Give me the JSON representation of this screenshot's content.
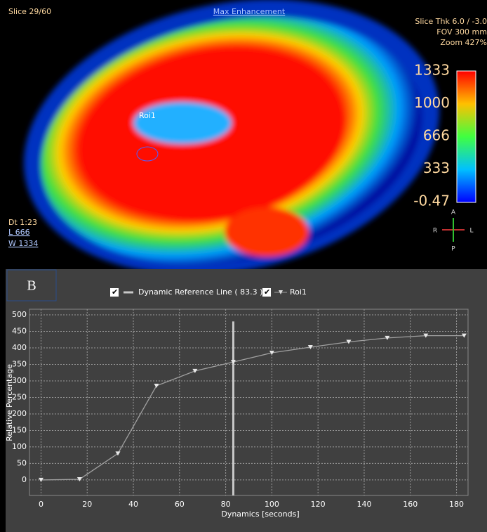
{
  "overlay": {
    "slice": "Slice 29/60",
    "mode": "Max Enhancement",
    "slice_thk": "Slice Thk 6.0 / -3.0",
    "fov": "FOV 300 mm",
    "zoom": "Zoom 427%",
    "colorbar_labels": [
      "1333",
      "1000",
      "666",
      "333",
      "-0.47"
    ],
    "roi": "Roi1",
    "dt": "Dt  1:23",
    "level": "L 666",
    "window": "W 1334",
    "orientation": [
      "A",
      "P",
      "R",
      "L"
    ]
  },
  "panel_label": "B",
  "chart_data": {
    "type": "line",
    "x_label": "Dynamics [seconds]",
    "y_label": "Relative Percentage",
    "x": [
      0,
      16.7,
      33.3,
      50,
      66.7,
      83.3,
      100,
      116.7,
      133.3,
      150,
      166.7,
      183.3
    ],
    "series": [
      {
        "name": "Roi1",
        "color": "#a0a0a0",
        "values": [
          0,
          2,
          80,
          285,
          330,
          357,
          385,
          402,
          418,
          430,
          437,
          437
        ]
      }
    ],
    "reference_line": {
      "label": "Dynamic Reference Line ( 83.3 )",
      "value": 83.3,
      "color": "#c8c8c8"
    },
    "xlim": [
      -5,
      185
    ],
    "ylim": [
      -47,
      517
    ],
    "xticks": [
      0,
      20,
      40,
      60,
      80,
      100,
      120,
      140,
      160,
      180
    ],
    "yticks": [
      0,
      50,
      100,
      150,
      200,
      250,
      300,
      350,
      400,
      450,
      500
    ],
    "grid": true
  }
}
